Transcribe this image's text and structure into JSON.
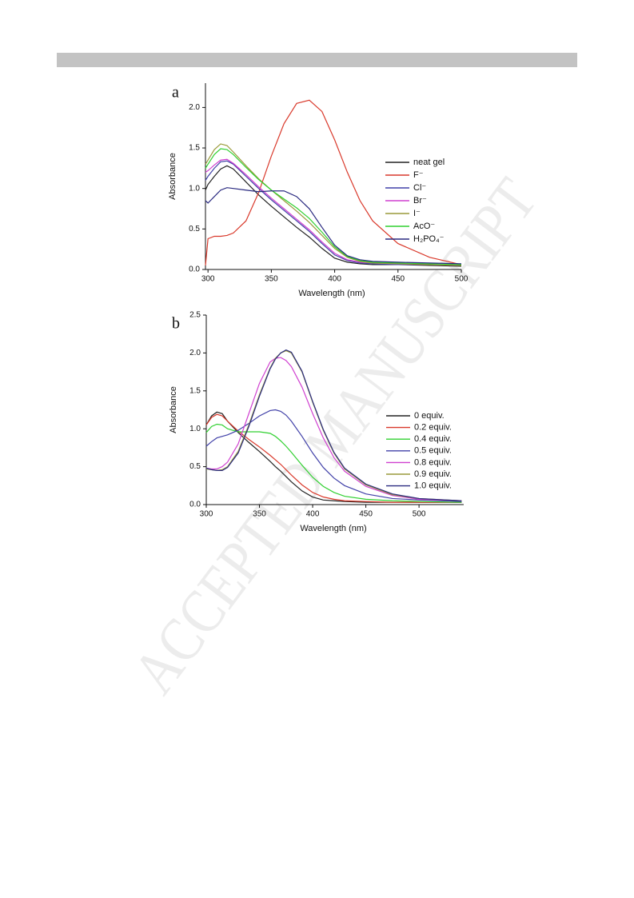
{
  "watermark": "ACCEPTED MANUSCRIPT",
  "chart_data": [
    {
      "type": "line",
      "panel_label": "a",
      "xlabel": "Wavelength (nm)",
      "ylabel": "Absorbance",
      "x": [
        298,
        300,
        305,
        310,
        315,
        320,
        330,
        340,
        350,
        360,
        370,
        380,
        390,
        400,
        410,
        420,
        430,
        450,
        475,
        500
      ],
      "xlim": [
        298,
        500
      ],
      "xticks": [
        300,
        350,
        400,
        450,
        500
      ],
      "ylim": [
        0,
        2.3
      ],
      "yticks": [
        {
          "value": 0,
          "label": "0.0"
        },
        {
          "value": 0.5,
          "label": "0.5"
        },
        {
          "value": 1,
          "label": "1.0"
        },
        {
          "value": 1.5,
          "label": "1.5"
        },
        {
          "value": 2,
          "label": "2.0"
        }
      ],
      "legend": "right",
      "series": [
        {
          "name": "neat gel",
          "color": "#222222",
          "values": [
            0.98,
            1.05,
            1.15,
            1.24,
            1.28,
            1.24,
            1.08,
            0.92,
            0.78,
            0.65,
            0.52,
            0.4,
            0.26,
            0.14,
            0.09,
            0.07,
            0.06,
            0.06,
            0.05,
            0.04
          ]
        },
        {
          "name": "F⁻",
          "color": "#d9392b",
          "values": [
            0.05,
            0.38,
            0.41,
            0.41,
            0.42,
            0.45,
            0.6,
            0.95,
            1.4,
            1.8,
            2.05,
            2.09,
            1.95,
            1.6,
            1.2,
            0.85,
            0.6,
            0.32,
            0.15,
            0.06
          ]
        },
        {
          "name": "Cl⁻",
          "color": "#4040a8",
          "values": [
            1.1,
            1.15,
            1.25,
            1.33,
            1.34,
            1.3,
            1.15,
            1.0,
            0.86,
            0.73,
            0.6,
            0.47,
            0.32,
            0.18,
            0.11,
            0.08,
            0.07,
            0.06,
            0.06,
            0.05
          ]
        },
        {
          "name": "Br⁻",
          "color": "#d040d0",
          "values": [
            1.2,
            1.22,
            1.29,
            1.35,
            1.36,
            1.31,
            1.17,
            1.02,
            0.88,
            0.75,
            0.62,
            0.49,
            0.34,
            0.2,
            0.12,
            0.09,
            0.08,
            0.07,
            0.06,
            0.05
          ]
        },
        {
          "name": "I⁻",
          "color": "#9a9a3a",
          "values": [
            1.3,
            1.35,
            1.48,
            1.55,
            1.53,
            1.45,
            1.28,
            1.12,
            0.98,
            0.85,
            0.72,
            0.58,
            0.42,
            0.26,
            0.15,
            0.1,
            0.08,
            0.07,
            0.06,
            0.05
          ]
        },
        {
          "name": "AcO⁻",
          "color": "#30d030",
          "values": [
            1.25,
            1.3,
            1.42,
            1.49,
            1.48,
            1.42,
            1.26,
            1.11,
            0.98,
            0.87,
            0.76,
            0.63,
            0.46,
            0.28,
            0.16,
            0.11,
            0.09,
            0.08,
            0.07,
            0.06
          ]
        },
        {
          "name": "H₂PO₄⁻",
          "color": "#2a2a80",
          "values": [
            0.85,
            0.82,
            0.9,
            0.98,
            1.01,
            1.0,
            0.98,
            0.96,
            0.97,
            0.97,
            0.9,
            0.75,
            0.52,
            0.3,
            0.17,
            0.12,
            0.1,
            0.09,
            0.08,
            0.07
          ]
        }
      ]
    },
    {
      "type": "line",
      "panel_label": "b",
      "xlabel": "Wavelength (nm)",
      "ylabel": "Absorbance",
      "x": [
        300,
        305,
        310,
        315,
        320,
        330,
        340,
        350,
        360,
        365,
        370,
        375,
        380,
        390,
        400,
        410,
        420,
        430,
        450,
        475,
        500,
        540
      ],
      "xlim": [
        300,
        542
      ],
      "xticks": [
        300,
        350,
        400,
        450,
        500
      ],
      "ylim": [
        0,
        2.5
      ],
      "yticks": [
        {
          "value": 0,
          "label": "0.0"
        },
        {
          "value": 0.5,
          "label": "0.5"
        },
        {
          "value": 1,
          "label": "1.0"
        },
        {
          "value": 1.5,
          "label": "1.5"
        },
        {
          "value": 2,
          "label": "2.0"
        },
        {
          "value": 2.5,
          "label": "2.5"
        }
      ],
      "legend": "right",
      "series": [
        {
          "name": "0 equiv.",
          "color": "#222222",
          "values": [
            1.05,
            1.17,
            1.22,
            1.2,
            1.1,
            0.95,
            0.82,
            0.7,
            0.57,
            0.5,
            0.44,
            0.37,
            0.3,
            0.18,
            0.1,
            0.06,
            0.05,
            0.04,
            0.03,
            0.03,
            0.03,
            0.03
          ]
        },
        {
          "name": "0.2 equiv.",
          "color": "#d9392b",
          "values": [
            1.05,
            1.15,
            1.19,
            1.17,
            1.1,
            0.97,
            0.86,
            0.76,
            0.65,
            0.59,
            0.53,
            0.46,
            0.39,
            0.26,
            0.16,
            0.1,
            0.07,
            0.05,
            0.04,
            0.03,
            0.03,
            0.03
          ]
        },
        {
          "name": "0.4 equiv.",
          "color": "#30d030",
          "values": [
            0.95,
            1.03,
            1.06,
            1.05,
            1.0,
            0.96,
            0.96,
            0.96,
            0.94,
            0.9,
            0.84,
            0.77,
            0.69,
            0.52,
            0.36,
            0.24,
            0.16,
            0.11,
            0.07,
            0.05,
            0.04,
            0.03
          ]
        },
        {
          "name": "0.5 equiv.",
          "color": "#4040a8",
          "values": [
            0.77,
            0.83,
            0.88,
            0.9,
            0.92,
            0.98,
            1.07,
            1.17,
            1.24,
            1.25,
            1.23,
            1.18,
            1.1,
            0.9,
            0.68,
            0.49,
            0.35,
            0.25,
            0.14,
            0.08,
            0.06,
            0.04
          ]
        },
        {
          "name": "0.8 equiv.",
          "color": "#d040d0",
          "values": [
            0.48,
            0.47,
            0.47,
            0.5,
            0.56,
            0.8,
            1.2,
            1.6,
            1.88,
            1.93,
            1.94,
            1.9,
            1.82,
            1.55,
            1.2,
            0.88,
            0.62,
            0.44,
            0.24,
            0.12,
            0.07,
            0.05
          ]
        },
        {
          "name": "0.9 equiv.",
          "color": "#9a9a3a",
          "values": [
            0.47,
            0.46,
            0.45,
            0.46,
            0.5,
            0.7,
            1.05,
            1.45,
            1.8,
            1.93,
            2.0,
            2.03,
            2.0,
            1.75,
            1.35,
            0.98,
            0.68,
            0.47,
            0.26,
            0.13,
            0.08,
            0.05
          ]
        },
        {
          "name": "1.0 equiv.",
          "color": "#2a2a80",
          "values": [
            0.48,
            0.46,
            0.45,
            0.45,
            0.49,
            0.68,
            1.03,
            1.43,
            1.79,
            1.92,
            2.0,
            2.04,
            2.01,
            1.76,
            1.36,
            0.99,
            0.69,
            0.48,
            0.27,
            0.14,
            0.08,
            0.05
          ]
        }
      ]
    }
  ]
}
